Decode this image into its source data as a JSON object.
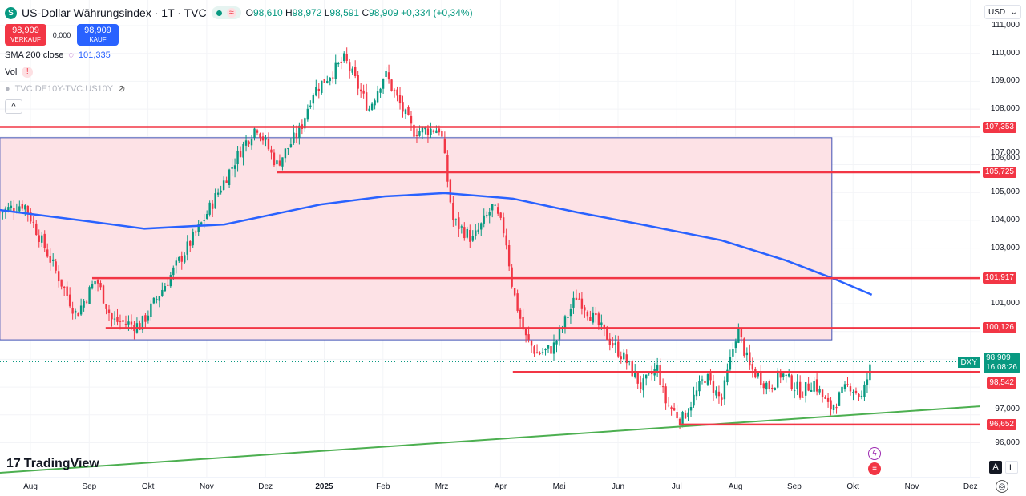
{
  "header": {
    "symbol_badge": "S",
    "title": "US-Dollar Währungsindex · 1T · TVC",
    "open_label": "O",
    "open": "98,610",
    "high_label": "H",
    "high": "98,972",
    "low_label": "L",
    "low": "98,591",
    "close_label": "C",
    "close": "98,909",
    "change": "+0,334 (+0,34%)"
  },
  "trade": {
    "sell_price": "98,909",
    "sell_label": "VERKAUF",
    "spread": "0,000",
    "buy_price": "98,909",
    "buy_label": "KAUF"
  },
  "indicators": {
    "sma_label": "SMA 200 close",
    "sma_value": "101,335",
    "vol_label": "Vol",
    "vol_warn": "!",
    "spread_symbol": "TVC:DE10Y-TVC:US10Y",
    "collapse": "^"
  },
  "price_axis": {
    "currency": "USD",
    "ticks": [
      111,
      110,
      109,
      108,
      107,
      106,
      105,
      104,
      103,
      101,
      97,
      96
    ],
    "tick_labels": [
      "111,000",
      "110,000",
      "109,000",
      "108,000",
      "107,000",
      "106,000",
      "105,000",
      "104,000",
      "103,000",
      "101,000",
      "97,000",
      "96,000"
    ],
    "current_tag": "DXY",
    "current_price": "98,909",
    "countdown": "16:08:26",
    "auto": "A",
    "log": "L"
  },
  "time_axis": {
    "labels": [
      "Aug",
      "Sep",
      "Okt",
      "Nov",
      "Dez",
      "2025",
      "Feb",
      "Mrz",
      "Apr",
      "Mai",
      "Jun",
      "Jul",
      "Aug",
      "Sep",
      "Okt",
      "Nov",
      "Dez"
    ]
  },
  "brand": "TradingView",
  "colors": {
    "up": "#089981",
    "down": "#f23645",
    "sma": "#2962ff",
    "level": "#f23645",
    "zone": "#fde2e6",
    "trend": "#4caf50"
  },
  "chart_data": {
    "type": "candlestick",
    "x_unit": "months since Aug 2024",
    "ylim": [
      94.6,
      111.4
    ],
    "close_path": [
      [
        -0.52,
        104.3
      ],
      [
        -0.11,
        104.6
      ],
      [
        0.78,
        100.6
      ],
      [
        1.12,
        101.9
      ],
      [
        1.39,
        100.4
      ],
      [
        1.87,
        100.2
      ],
      [
        2.89,
        103.8
      ],
      [
        3.57,
        106.5
      ],
      [
        3.85,
        107.4
      ],
      [
        4.19,
        106
      ],
      [
        4.6,
        107.3
      ],
      [
        4.8,
        108.6
      ],
      [
        5.35,
        109.8
      ],
      [
        5.76,
        108
      ],
      [
        6.03,
        109.3
      ],
      [
        6.51,
        107.2
      ],
      [
        6.98,
        107.3
      ],
      [
        7.19,
        104
      ],
      [
        7.53,
        103.3
      ],
      [
        7.87,
        104.5
      ],
      [
        8.08,
        103.5
      ],
      [
        8.21,
        101.5
      ],
      [
        8.42,
        99.8
      ],
      [
        8.62,
        99.2
      ],
      [
        8.89,
        99.4
      ],
      [
        9.3,
        101.3
      ],
      [
        9.71,
        100.1
      ],
      [
        10.12,
        99
      ],
      [
        10.4,
        98
      ],
      [
        10.67,
        98.7
      ],
      [
        10.8,
        97.5
      ],
      [
        11.08,
        96.8
      ],
      [
        11.49,
        98.4
      ],
      [
        11.76,
        97.5
      ],
      [
        12.03,
        100.1
      ],
      [
        12.24,
        98.7
      ],
      [
        12.58,
        98
      ],
      [
        12.78,
        98.5
      ],
      [
        13.12,
        97.8
      ],
      [
        13.33,
        98.2
      ],
      [
        13.6,
        97.2
      ],
      [
        13.94,
        98.1
      ],
      [
        14.15,
        97.6
      ],
      [
        14.32,
        98.9
      ]
    ],
    "sma200": {
      "label": "SMA 200",
      "points": [
        [
          -0.52,
          104.37
        ],
        [
          0.85,
          104.0
        ],
        [
          1.94,
          103.7
        ],
        [
          3.3,
          103.85
        ],
        [
          4.94,
          104.57
        ],
        [
          6.03,
          104.86
        ],
        [
          7.05,
          104.98
        ],
        [
          8.21,
          104.78
        ],
        [
          9.3,
          104.29
        ],
        [
          10.4,
          103.85
        ],
        [
          11.76,
          103.28
        ],
        [
          12.85,
          102.56
        ],
        [
          13.67,
          101.9
        ],
        [
          14.32,
          101.32
        ]
      ]
    },
    "levels": [
      {
        "price": 107.353,
        "label": "107,353",
        "from": -0.52
      },
      {
        "price": 105.725,
        "label": "105,725",
        "from": 4.19
      },
      {
        "price": 101.917,
        "label": "101,917",
        "from": 1.05
      },
      {
        "price": 100.126,
        "label": "100,126",
        "from": 1.28
      },
      {
        "price": 98.542,
        "label": "98,542",
        "from": 8.21
      },
      {
        "price": 96.652,
        "label": "96,652",
        "from": 11.05
      }
    ],
    "zone": {
      "from": -0.52,
      "to": 13.64,
      "top": 106.97,
      "bottom": 99.7
    },
    "trendline": [
      [
        -0.52,
        94.92
      ],
      [
        16.16,
        97.31
      ]
    ]
  }
}
